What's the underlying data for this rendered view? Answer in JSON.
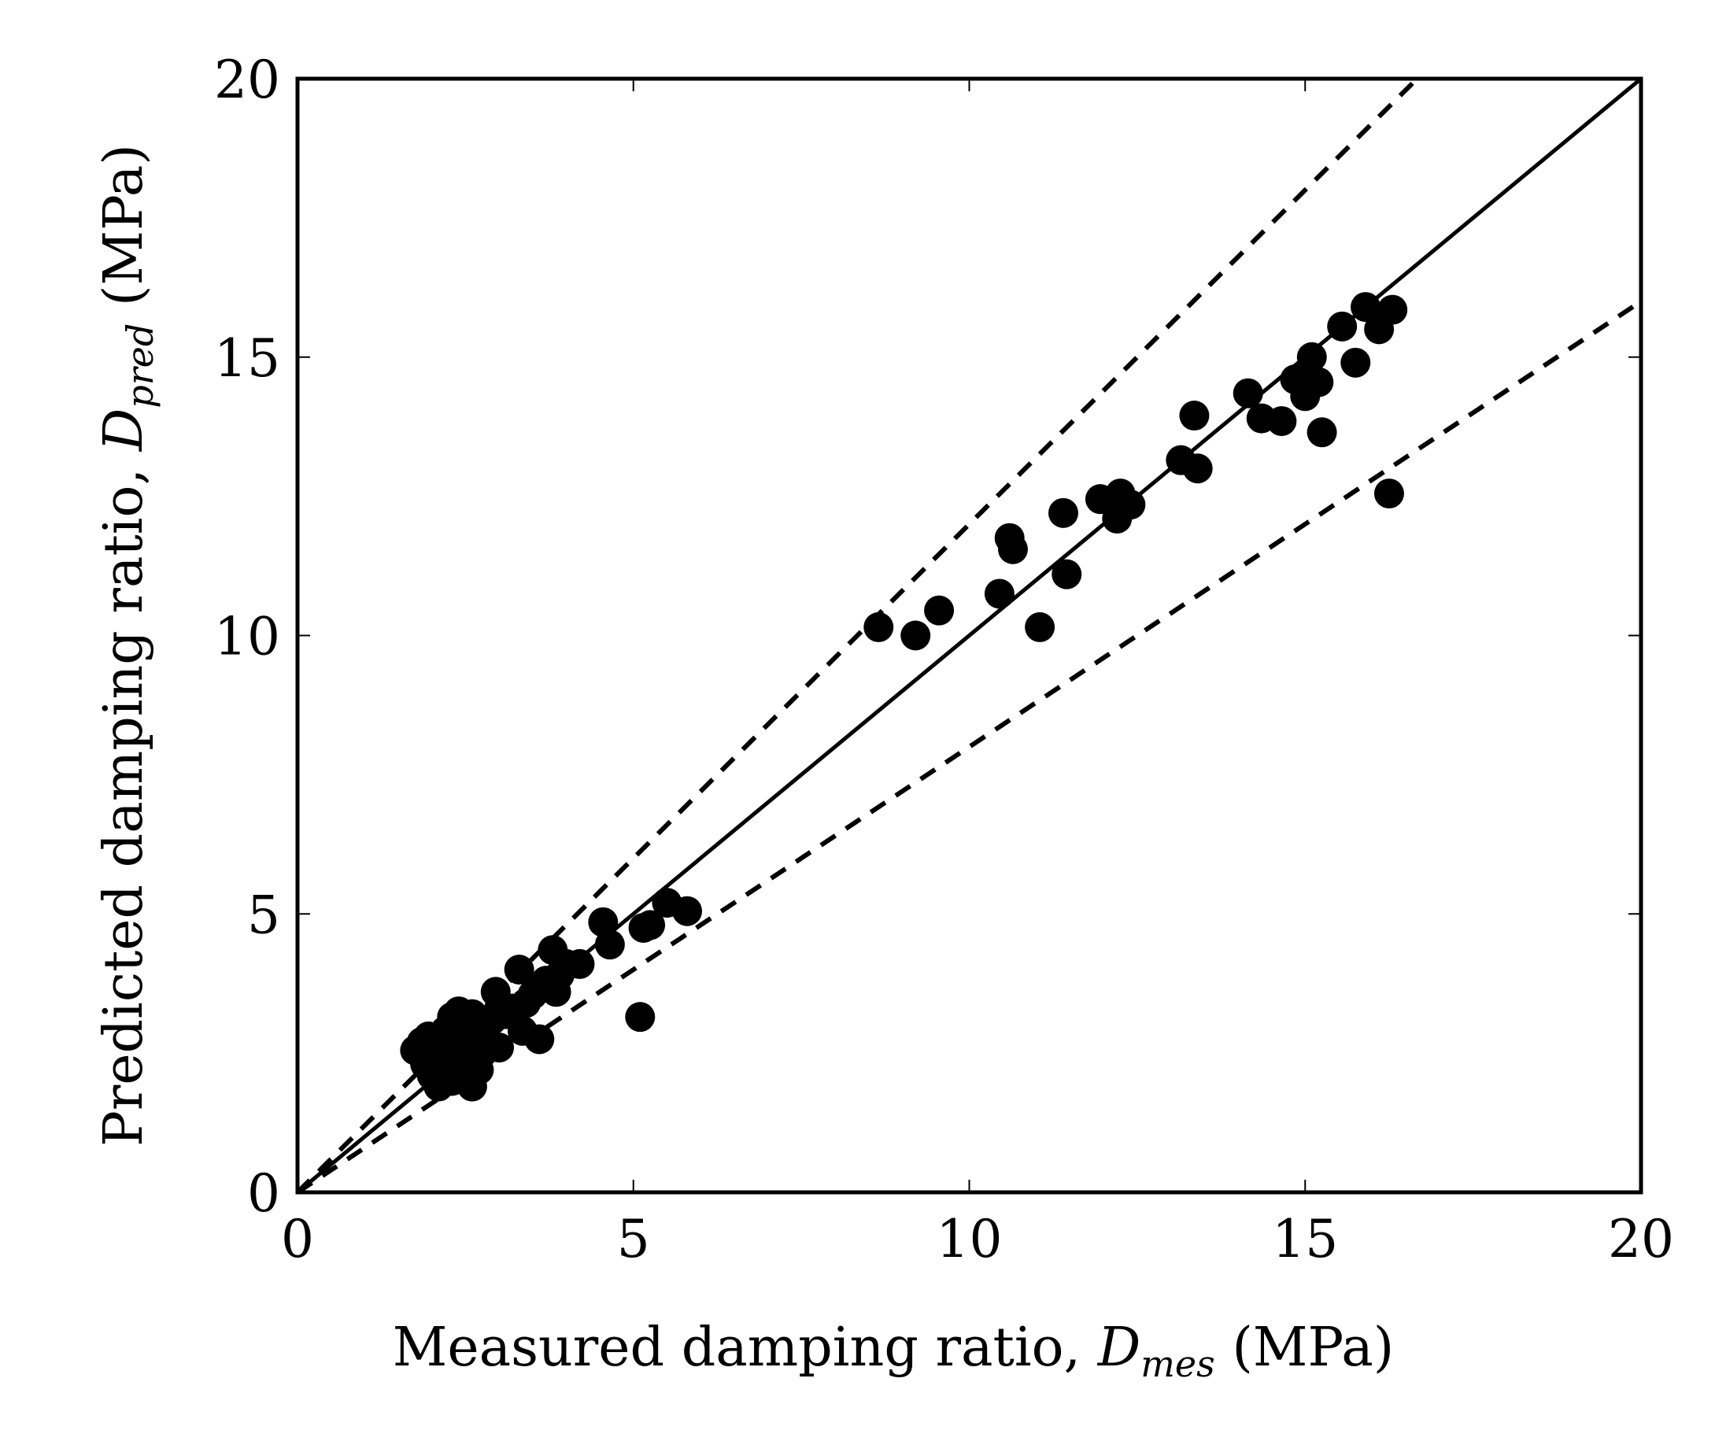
{
  "chart_data": {
    "type": "scatter",
    "title": "",
    "xlabel": {
      "prefix": "Measured damping ratio, ",
      "symbol": "D",
      "subscript": "mes",
      "suffix": " (MPa)"
    },
    "ylabel": {
      "prefix": "Predicted damping ratio, ",
      "symbol": "D",
      "subscript": "pred",
      "suffix": " (MPa)"
    },
    "xlim": [
      0,
      20
    ],
    "ylim": [
      0,
      20
    ],
    "xticks": [
      "0",
      "5",
      "10",
      "15",
      "20"
    ],
    "yticks": [
      "0",
      "5",
      "10",
      "15",
      "20"
    ],
    "grid": false,
    "lines": [
      {
        "name": "y = x",
        "style": "solid",
        "slope": 1.0
      },
      {
        "name": "+20%",
        "style": "dashed",
        "slope": 1.2
      },
      {
        "name": "-20%",
        "style": "dashed",
        "slope": 0.8
      }
    ],
    "series": [
      {
        "name": "data",
        "color": "#000000",
        "x": [
          1.75,
          1.85,
          1.9,
          1.95,
          2.0,
          2.0,
          2.05,
          2.1,
          2.1,
          2.15,
          2.2,
          2.2,
          2.25,
          2.3,
          2.3,
          2.35,
          2.4,
          2.4,
          2.45,
          2.5,
          2.5,
          2.55,
          2.6,
          2.6,
          2.65,
          2.7,
          2.75,
          2.8,
          2.85,
          2.9,
          2.95,
          3.0,
          3.1,
          3.2,
          3.3,
          3.4,
          3.5,
          3.6,
          3.7,
          3.8,
          3.9,
          4.0,
          2.3,
          2.5,
          2.7,
          3.0,
          3.35,
          3.85,
          2.2,
          2.4,
          2.6,
          2.05,
          3.6,
          4.2,
          4.55,
          4.65,
          5.15,
          5.25,
          5.5,
          5.8,
          5.1,
          8.65,
          9.2,
          9.55,
          10.45,
          10.6,
          10.65,
          11.05,
          11.4,
          11.45,
          11.95,
          12.2,
          12.25,
          12.4,
          13.15,
          13.35,
          13.4,
          14.15,
          14.35,
          14.65,
          14.85,
          15.0,
          15.1,
          15.2,
          15.25,
          15.55,
          15.75,
          15.9,
          16.1,
          16.3,
          16.25
        ],
        "y": [
          2.55,
          2.7,
          2.3,
          2.8,
          2.1,
          2.5,
          2.6,
          2.4,
          1.9,
          2.7,
          2.9,
          2.2,
          2.5,
          3.15,
          2.0,
          2.7,
          2.4,
          3.25,
          2.6,
          3.0,
          2.2,
          2.8,
          3.2,
          1.9,
          2.75,
          2.9,
          2.5,
          3.0,
          2.7,
          3.1,
          3.6,
          3.3,
          3.2,
          3.3,
          4.0,
          3.4,
          3.55,
          3.7,
          3.8,
          4.35,
          3.9,
          4.1,
          2.3,
          2.1,
          2.2,
          2.6,
          2.9,
          3.6,
          2.0,
          2.3,
          2.6,
          2.2,
          2.75,
          4.1,
          4.85,
          4.45,
          4.75,
          4.8,
          5.2,
          5.05,
          3.15,
          10.15,
          10.0,
          10.45,
          10.75,
          11.75,
          11.55,
          10.15,
          12.2,
          11.1,
          12.45,
          12.1,
          12.55,
          12.35,
          13.15,
          13.95,
          13.0,
          14.35,
          13.9,
          13.85,
          14.6,
          14.3,
          15.0,
          14.55,
          13.65,
          15.55,
          14.9,
          15.9,
          15.5,
          15.85,
          12.55
        ]
      }
    ]
  }
}
